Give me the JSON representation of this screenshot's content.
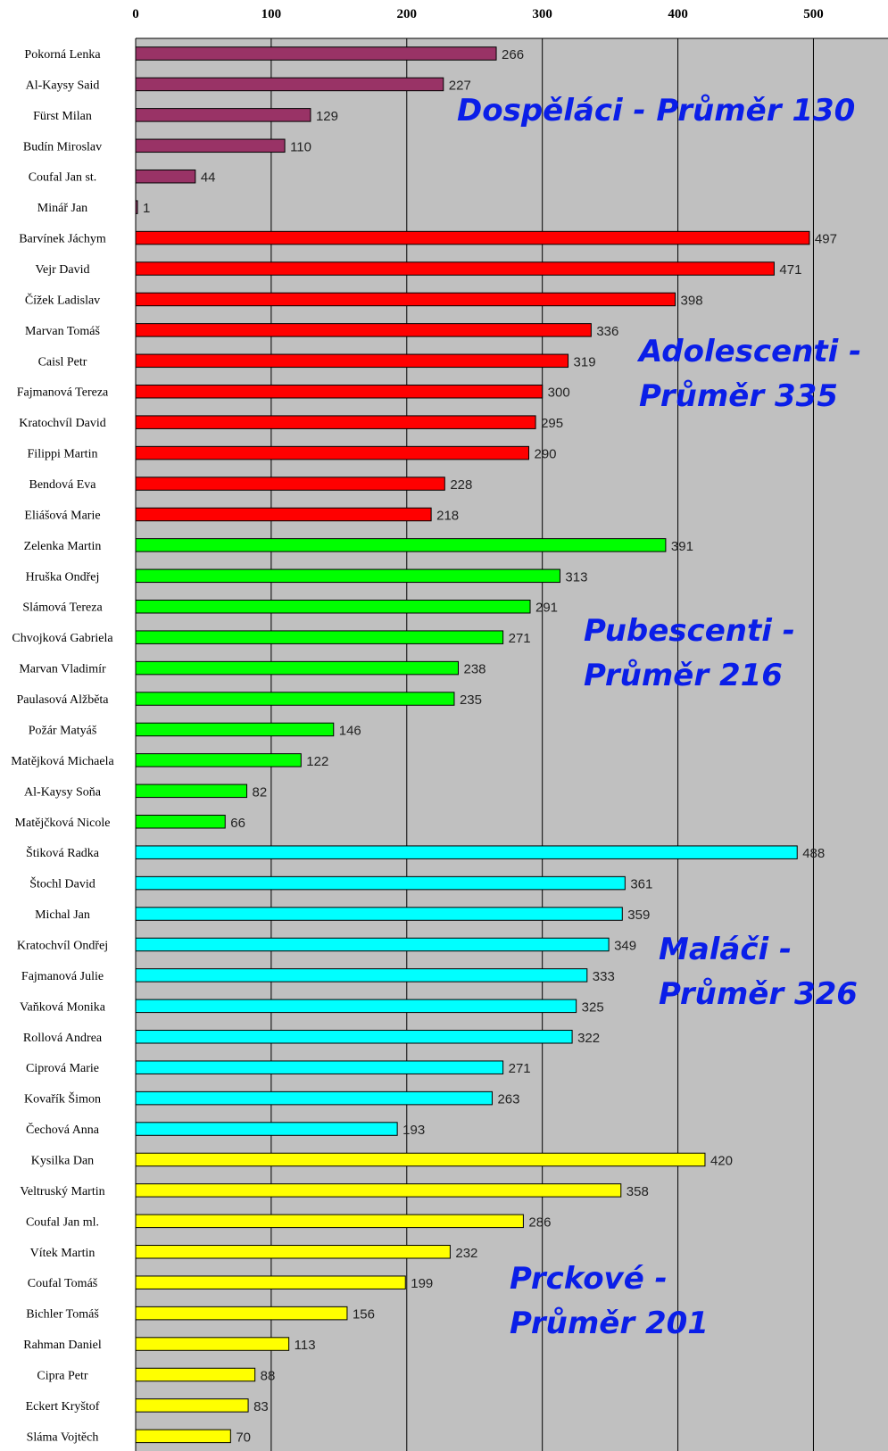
{
  "chart_data": {
    "type": "bar",
    "orientation": "horizontal",
    "xlim": [
      0,
      555
    ],
    "xticks": [
      0,
      100,
      200,
      300,
      400,
      500
    ],
    "grid": true,
    "plot_background": "#c0c0c0",
    "groups": [
      {
        "label_lines": [
          "Dospěláci - Průměr 130"
        ],
        "color": "#993366",
        "items": [
          {
            "name": "Pokorná Lenka",
            "value": 266
          },
          {
            "name": "Al-Kaysy Said",
            "value": 227
          },
          {
            "name": "Fürst Milan",
            "value": 129
          },
          {
            "name": "Budín Miroslav",
            "value": 110
          },
          {
            "name": "Coufal Jan st.",
            "value": 44
          },
          {
            "name": "Minář Jan",
            "value": 1
          }
        ]
      },
      {
        "label_lines": [
          "Adolescenti -",
          "Průměr 335"
        ],
        "color": "#ff0000",
        "items": [
          {
            "name": "Barvínek Jáchym",
            "value": 497
          },
          {
            "name": "Vejr David",
            "value": 471
          },
          {
            "name": "Čížek Ladislav",
            "value": 398
          },
          {
            "name": "Marvan Tomáš",
            "value": 336
          },
          {
            "name": "Caisl Petr",
            "value": 319
          },
          {
            "name": "Fajmanová Tereza",
            "value": 300
          },
          {
            "name": "Kratochvíl David",
            "value": 295
          },
          {
            "name": "Filippi Martin",
            "value": 290
          },
          {
            "name": "Bendová Eva",
            "value": 228
          },
          {
            "name": "Eliášová Marie",
            "value": 218
          }
        ]
      },
      {
        "label_lines": [
          "Pubescenti -",
          "Průměr 216"
        ],
        "color": "#00ff00",
        "items": [
          {
            "name": "Zelenka Martin",
            "value": 391
          },
          {
            "name": "Hruška Ondřej",
            "value": 313
          },
          {
            "name": "Slámová Tereza",
            "value": 291
          },
          {
            "name": "Chvojková Gabriela",
            "value": 271
          },
          {
            "name": "Marvan Vladimír",
            "value": 238
          },
          {
            "name": "Paulasová Alžběta",
            "value": 235
          },
          {
            "name": "Požár Matyáš",
            "value": 146
          },
          {
            "name": "Matějková Michaela",
            "value": 122
          },
          {
            "name": "Al-Kaysy Soňa",
            "value": 82
          },
          {
            "name": "Matějčková Nicole",
            "value": 66
          }
        ]
      },
      {
        "label_lines": [
          "Maláči -",
          "Průměr 326"
        ],
        "color": "#00ffff",
        "items": [
          {
            "name": "Štiková Radka",
            "value": 488
          },
          {
            "name": "Štochl David",
            "value": 361
          },
          {
            "name": "Michal Jan",
            "value": 359
          },
          {
            "name": "Kratochvíl Ondřej",
            "value": 349
          },
          {
            "name": "Fajmanová Julie",
            "value": 333
          },
          {
            "name": "Vaňková Monika",
            "value": 325
          },
          {
            "name": "Rollová Andrea",
            "value": 322
          },
          {
            "name": "Ciprová Marie",
            "value": 271
          },
          {
            "name": "Kovařík Šimon",
            "value": 263
          },
          {
            "name": "Čechová Anna",
            "value": 193
          }
        ]
      },
      {
        "label_lines": [
          "Prckové -",
          "Průměr 201"
        ],
        "color": "#ffff00",
        "items": [
          {
            "name": "Kysilka Dan",
            "value": 420
          },
          {
            "name": "Veltruský Martin",
            "value": 358
          },
          {
            "name": "Coufal Jan ml.",
            "value": 286
          },
          {
            "name": "Vítek Martin",
            "value": 232
          },
          {
            "name": "Coufal Tomáš",
            "value": 199
          },
          {
            "name": "Bichler Tomáš",
            "value": 156
          },
          {
            "name": "Rahman Daniel",
            "value": 113
          },
          {
            "name": "Cipra Petr",
            "value": 88
          },
          {
            "name": "Eckert Kryštof",
            "value": 83
          },
          {
            "name": "Sláma Vojtěch",
            "value": 70
          }
        ]
      }
    ]
  }
}
